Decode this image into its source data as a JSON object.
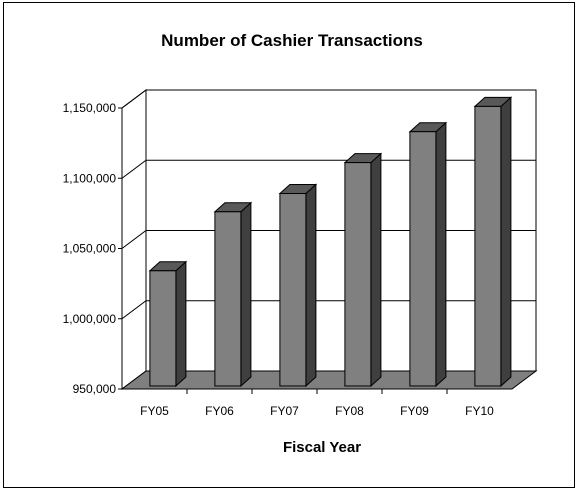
{
  "chart_data": {
    "type": "bar",
    "title": "Number of Cashier Transactions",
    "xlabel": "Fiscal Year",
    "ylabel": "",
    "categories": [
      "FY05",
      "FY06",
      "FY07",
      "FY08",
      "FY09",
      "FY10"
    ],
    "values": [
      1032000,
      1074000,
      1087000,
      1109000,
      1131000,
      1149000
    ],
    "ylim": [
      950000,
      1150000
    ],
    "yticks": [
      950000,
      1000000,
      1050000,
      1100000,
      1150000
    ],
    "ytick_labels": [
      "950,000",
      "1,000,000",
      "1,050,000",
      "1,100,000",
      "1,150,000"
    ],
    "grid": true,
    "legend": "none",
    "style": "3d-column",
    "colors": {
      "bar_front": "#808080",
      "bar_side": "#3f3f3f",
      "bar_top": "#595959",
      "floor": "#7f7f7f",
      "gridline": "#000000"
    }
  }
}
